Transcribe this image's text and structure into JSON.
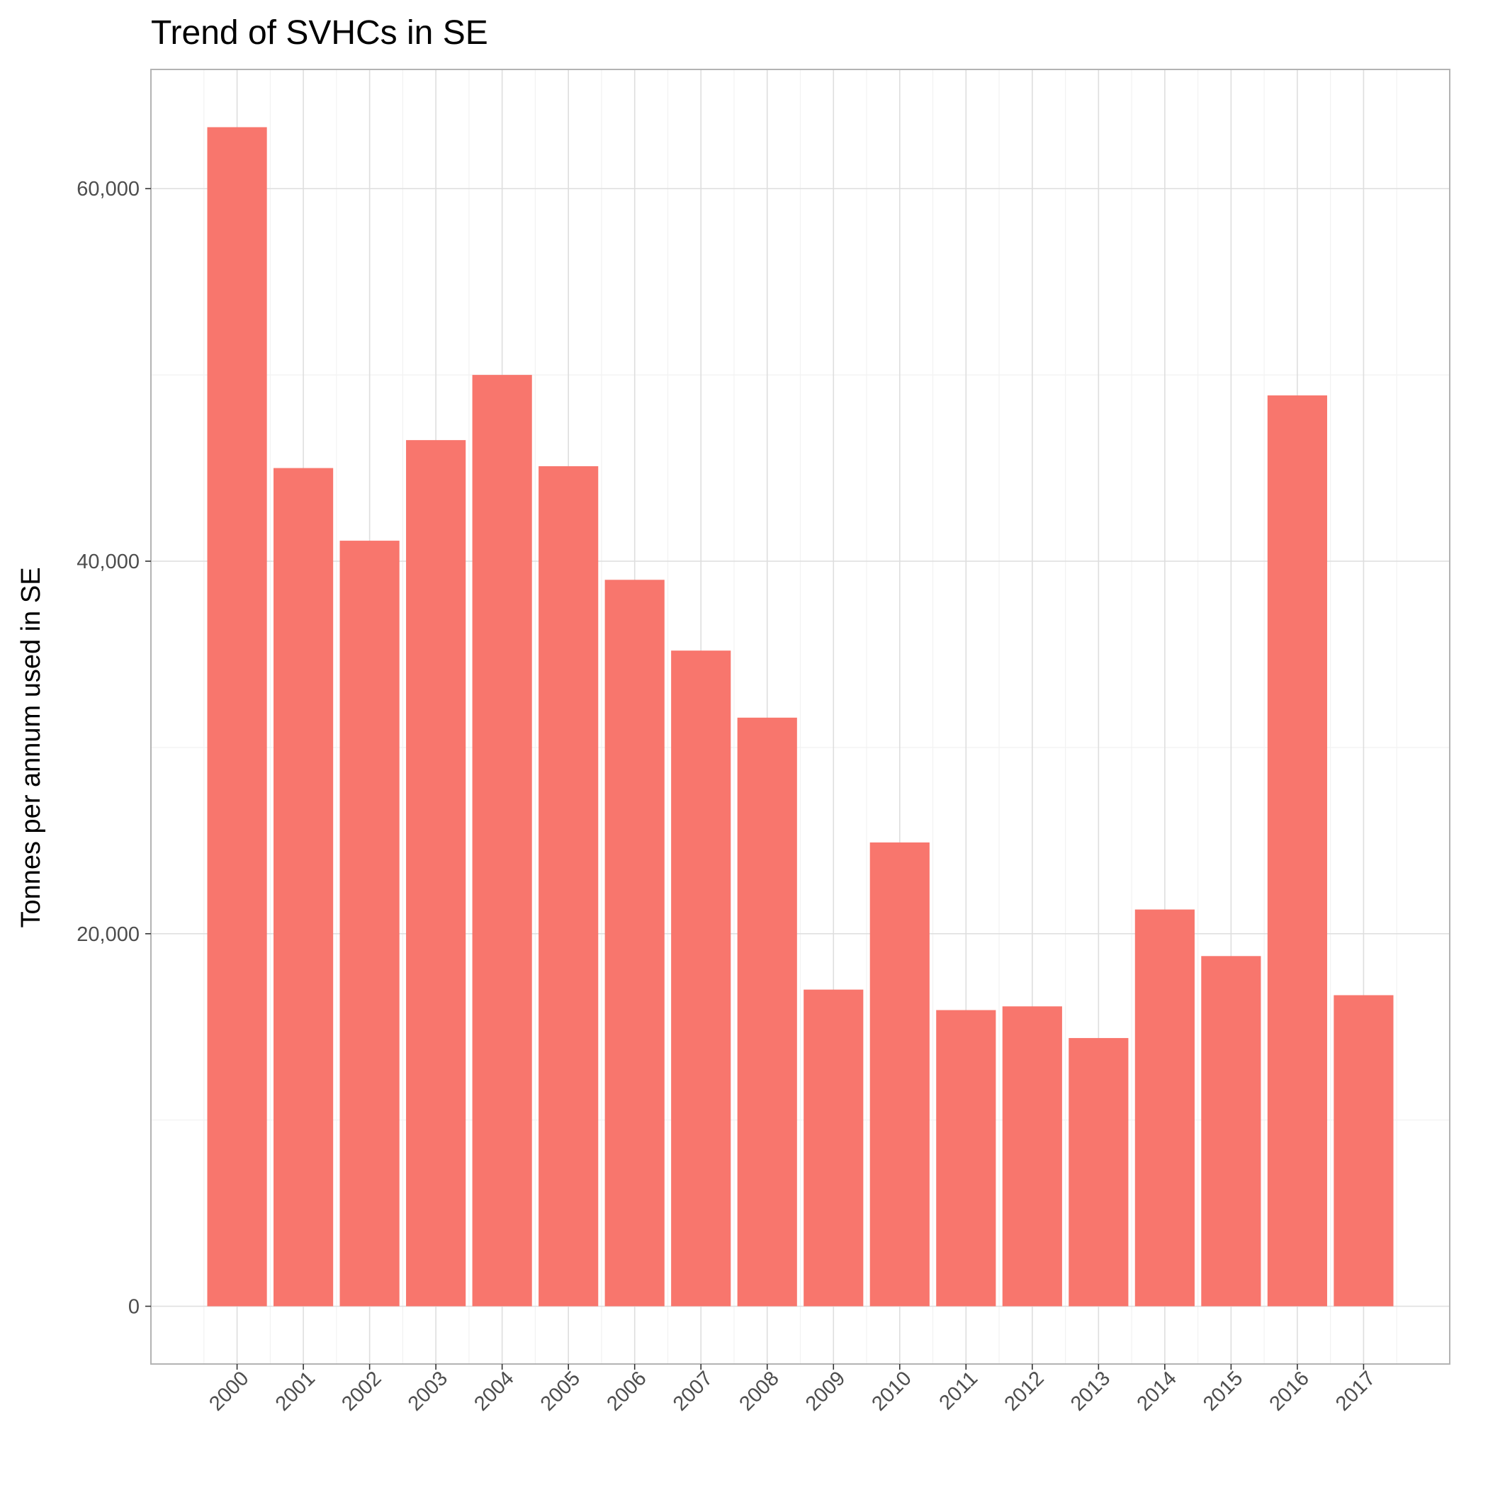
{
  "chart_data": {
    "type": "bar",
    "title": "Trend of SVHCs in SE",
    "xlabel": "",
    "ylabel": "Tonnes per annum used in SE",
    "categories": [
      "2000",
      "2001",
      "2002",
      "2003",
      "2004",
      "2005",
      "2006",
      "2007",
      "2008",
      "2009",
      "2010",
      "2011",
      "2012",
      "2013",
      "2014",
      "2015",
      "2016",
      "2017"
    ],
    "values": [
      63300,
      45000,
      41100,
      46500,
      50000,
      45100,
      39000,
      35200,
      31600,
      17000,
      24900,
      15900,
      16100,
      14400,
      21300,
      18800,
      48900,
      16700
    ],
    "ylim": [
      -3100,
      66400
    ],
    "yticks": [
      0,
      20000,
      40000,
      60000
    ],
    "ytick_labels": [
      "0",
      "20,000",
      "40,000",
      "60,000"
    ],
    "grid": true,
    "bar_color": "#F8766D",
    "grid_color": "#EBEBEB",
    "panel_border_color": "#B3B3B3"
  }
}
